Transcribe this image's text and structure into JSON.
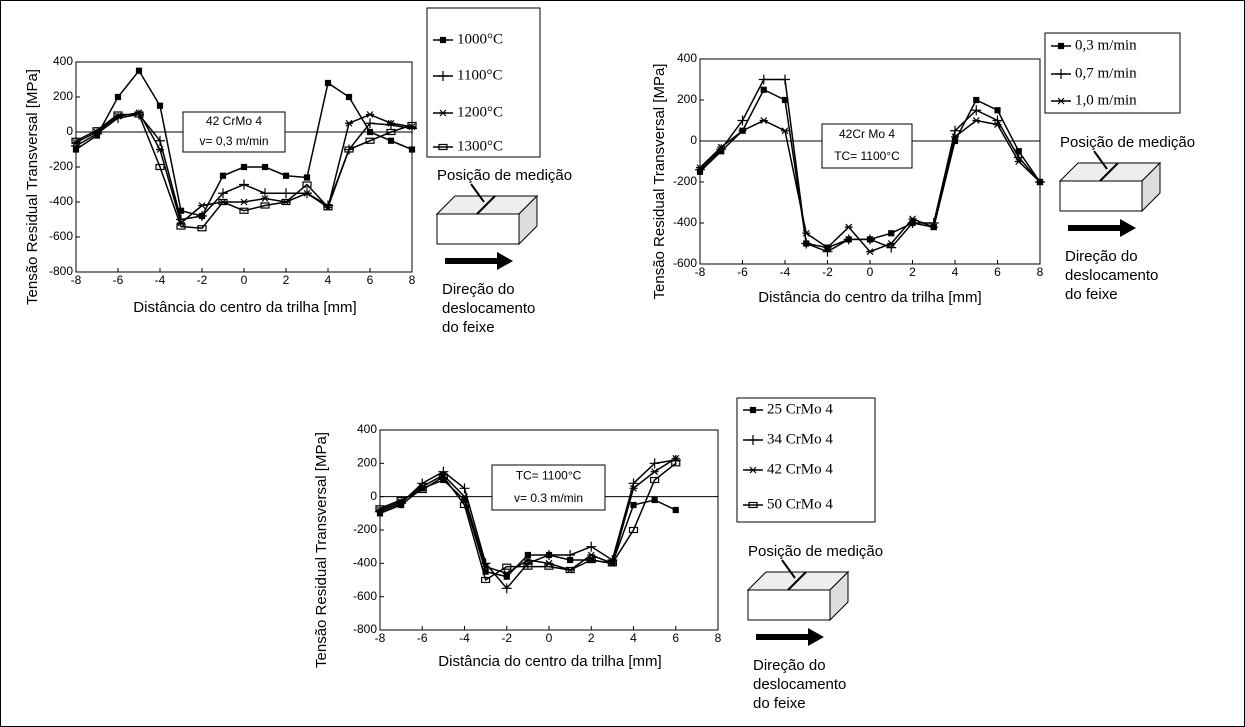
{
  "chart_data": [
    {
      "type": "line",
      "y_label": "Tensão Residual Transversal [MPa]",
      "x_label": "Distância do centro da trilha [mm]",
      "annotation": [
        "42 CrMo 4",
        "v= 0,3 m/min"
      ],
      "diagram_labels": [
        "Posição de medição",
        "Direção do",
        "deslocamento",
        "do feixe"
      ],
      "xlim": [
        -8,
        8
      ],
      "ylim": [
        -800,
        400
      ],
      "xticks": [
        -8,
        -6,
        -4,
        -2,
        0,
        2,
        4,
        6,
        8
      ],
      "yticks": [
        -800,
        -600,
        -400,
        -200,
        0,
        200,
        400
      ],
      "series": [
        {
          "name": "1000°C",
          "color": "#000000",
          "marker": "square",
          "x": [
            -8,
            -7,
            -6,
            -5,
            -4,
            -3,
            -2,
            -1,
            0,
            1,
            2,
            3,
            4,
            5,
            6,
            7,
            8
          ],
          "values": [
            -100,
            -20,
            200,
            350,
            150,
            -450,
            -480,
            -250,
            -200,
            -200,
            -250,
            -260,
            280,
            200,
            0,
            -50,
            -100
          ]
        },
        {
          "name": "1100°C",
          "color": "#000000",
          "marker": "plus",
          "x": [
            -8,
            -7,
            -6,
            -5,
            -4,
            -3,
            -2,
            -1,
            0,
            1,
            2,
            3,
            4,
            5,
            6,
            7,
            8
          ],
          "values": [
            -80,
            -10,
            80,
            100,
            -50,
            -500,
            -480,
            -350,
            -300,
            -350,
            -350,
            -350,
            -420,
            -100,
            50,
            40,
            20
          ]
        },
        {
          "name": "1200°C",
          "color": "#000000",
          "marker": "star",
          "x": [
            -8,
            -7,
            -6,
            -5,
            -4,
            -3,
            -2,
            -1,
            0,
            1,
            2,
            3,
            4,
            5,
            6,
            7,
            8
          ],
          "values": [
            -60,
            0,
            90,
            110,
            -100,
            -520,
            -420,
            -400,
            -400,
            -380,
            -400,
            -350,
            -430,
            50,
            100,
            50,
            30
          ]
        },
        {
          "name": "1300°C",
          "color": "#000000",
          "marker": "box",
          "x": [
            -8,
            -7,
            -6,
            -5,
            -4,
            -3,
            -2,
            -1,
            0,
            1,
            2,
            3,
            4,
            5,
            6,
            7,
            8
          ],
          "values": [
            -50,
            10,
            100,
            100,
            -200,
            -540,
            -550,
            -400,
            -450,
            -420,
            -400,
            -300,
            -430,
            -100,
            -50,
            0,
            40
          ]
        }
      ]
    },
    {
      "type": "line",
      "y_label": "Tensão Residual Transversal [MPa]",
      "x_label": "Distância do centro da trilha [mm]",
      "annotation": [
        "42Cr Mo 4",
        "TC= 1100°C"
      ],
      "diagram_labels": [
        "Posição de medição",
        "Direção do",
        "deslocamento",
        "do feixe"
      ],
      "xlim": [
        -8,
        8
      ],
      "ylim": [
        -600,
        400
      ],
      "xticks": [
        -8,
        -6,
        -4,
        -2,
        0,
        2,
        4,
        6,
        8
      ],
      "yticks": [
        -600,
        -400,
        -200,
        0,
        200,
        400
      ],
      "series": [
        {
          "name": "0,3 m/min",
          "color": "#000000",
          "marker": "square",
          "x": [
            -8,
            -7,
            -6,
            -5,
            -4,
            -3,
            -2,
            -1,
            0,
            1,
            2,
            3,
            4,
            5,
            6,
            7,
            8
          ],
          "values": [
            -150,
            -50,
            50,
            250,
            200,
            -500,
            -520,
            -480,
            -480,
            -450,
            -400,
            -420,
            0,
            200,
            150,
            -50,
            -200
          ]
        },
        {
          "name": "0,7 m/min",
          "color": "#000000",
          "marker": "plus",
          "x": [
            -8,
            -7,
            -6,
            -5,
            -4,
            -3,
            -2,
            -1,
            0,
            1,
            2,
            3,
            4,
            5,
            6,
            7,
            8
          ],
          "values": [
            -140,
            -40,
            100,
            300,
            300,
            -500,
            -540,
            -480,
            -480,
            -520,
            -400,
            -400,
            50,
            150,
            100,
            -80,
            -200
          ]
        },
        {
          "name": "1,0 m/min",
          "color": "#000000",
          "marker": "star",
          "x": [
            -8,
            -7,
            -6,
            -5,
            -4,
            -3,
            -2,
            -1,
            0,
            1,
            2,
            3,
            4,
            5,
            6,
            7,
            8
          ],
          "values": [
            -130,
            -30,
            50,
            100,
            50,
            -450,
            -520,
            -420,
            -540,
            -500,
            -380,
            -420,
            20,
            100,
            80,
            -100,
            -200
          ]
        }
      ]
    },
    {
      "type": "line",
      "y_label": "Tensão Residual Transversal [MPa]",
      "x_label": "Distância do centro da trilha [mm]",
      "annotation": [
        "TC= 1100°C",
        "v= 0.3 m/min"
      ],
      "diagram_labels": [
        "Posição de medição",
        "Direção do",
        "deslocamento",
        "do feixe"
      ],
      "xlim": [
        -8,
        8
      ],
      "ylim": [
        -800,
        400
      ],
      "xticks": [
        -8,
        -6,
        -4,
        -2,
        0,
        2,
        4,
        6,
        8
      ],
      "yticks": [
        -800,
        -600,
        -400,
        -200,
        0,
        200,
        400
      ],
      "series": [
        {
          "name": "25 CrMo 4",
          "color": "#000000",
          "marker": "square",
          "x": [
            -8,
            -7,
            -6,
            -5,
            -4,
            -3,
            -2,
            -1,
            0,
            1,
            2,
            3,
            4,
            5,
            6
          ],
          "values": [
            -100,
            -50,
            50,
            100,
            -20,
            -450,
            -480,
            -350,
            -350,
            -380,
            -380,
            -400,
            -50,
            -20,
            -80
          ]
        },
        {
          "name": "34 CrMo 4",
          "color": "#000000",
          "marker": "plus",
          "x": [
            -8,
            -7,
            -6,
            -5,
            -4,
            -3,
            -2,
            -1,
            0,
            1,
            2,
            3,
            4,
            5,
            6
          ],
          "values": [
            -90,
            -40,
            80,
            150,
            50,
            -400,
            -550,
            -400,
            -350,
            -350,
            -300,
            -380,
            80,
            200,
            220
          ]
        },
        {
          "name": "42 CrMo 4",
          "color": "#000000",
          "marker": "star",
          "x": [
            -8,
            -7,
            -6,
            -5,
            -4,
            -3,
            -2,
            -1,
            0,
            1,
            2,
            3,
            4,
            5,
            6
          ],
          "values": [
            -80,
            -30,
            60,
            130,
            0,
            -420,
            -460,
            -380,
            -400,
            -440,
            -350,
            -400,
            50,
            150,
            230
          ]
        },
        {
          "name": "50 CrMo 4",
          "color": "#000000",
          "marker": "box",
          "x": [
            -8,
            -7,
            -6,
            -5,
            -4,
            -3,
            -2,
            -1,
            0,
            1,
            2,
            3,
            4,
            5,
            6
          ],
          "values": [
            -70,
            -20,
            40,
            120,
            -50,
            -500,
            -420,
            -420,
            -420,
            -440,
            -380,
            -400,
            -200,
            100,
            200
          ]
        }
      ]
    }
  ]
}
